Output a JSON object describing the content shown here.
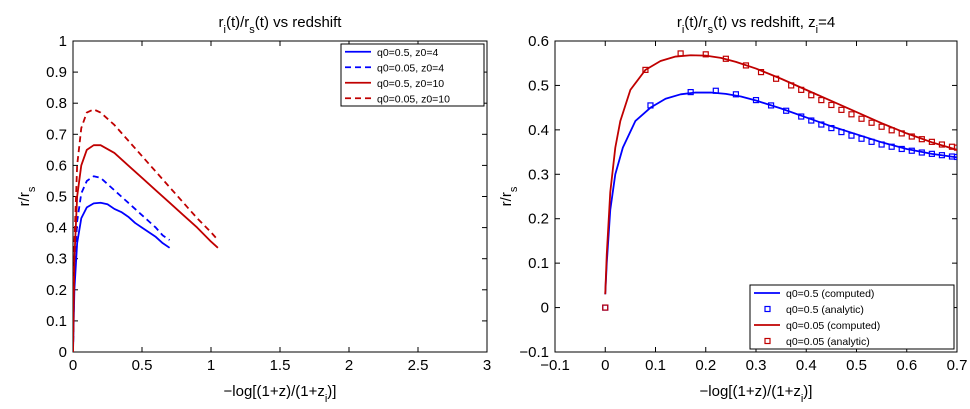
{
  "chart_data": [
    {
      "type": "line",
      "title_base": "r",
      "title_sub1": "i",
      "title_mid": "(t)/r",
      "title_sub2": "s",
      "title_tail": "(t) vs redshift",
      "xlabel_base": "−log[(1+z)/(1+z",
      "xlabel_sub": "i",
      "xlabel_tail": ")]",
      "ylabel_base": "r/r",
      "ylabel_sub": "s",
      "xlim": [
        0,
        3
      ],
      "ylim": [
        0,
        1
      ],
      "xticks": [
        0,
        0.5,
        1,
        1.5,
        2,
        2.5,
        3
      ],
      "xtick_labels": [
        "0",
        "0.5",
        "1",
        "1.5",
        "2",
        "2.5",
        "3"
      ],
      "yticks": [
        0,
        0.1,
        0.2,
        0.3,
        0.4,
        0.5,
        0.6,
        0.7,
        0.8,
        0.9,
        1
      ],
      "ytick_labels": [
        "0",
        "0.1",
        "0.2",
        "0.3",
        "0.4",
        "0.5",
        "0.6",
        "0.7",
        "0.8",
        "0.9",
        "1"
      ],
      "legend_position": "top-right",
      "series": [
        {
          "name": "q0=0.5, z0=4",
          "color": "#0000ff",
          "style": "solid",
          "x": [
            0,
            0.01,
            0.03,
            0.06,
            0.1,
            0.15,
            0.2,
            0.25,
            0.3,
            0.35,
            0.4,
            0.45,
            0.5,
            0.55,
            0.6,
            0.65,
            0.7
          ],
          "y": [
            0,
            0.2,
            0.35,
            0.43,
            0.465,
            0.478,
            0.48,
            0.475,
            0.46,
            0.45,
            0.435,
            0.415,
            0.4,
            0.385,
            0.37,
            0.35,
            0.335
          ]
        },
        {
          "name": "q0=0.05, z0=4",
          "color": "#0000ff",
          "style": "dashed",
          "x": [
            0,
            0.01,
            0.03,
            0.06,
            0.1,
            0.15,
            0.2,
            0.25,
            0.3,
            0.35,
            0.4,
            0.45,
            0.5,
            0.55,
            0.6,
            0.65,
            0.7
          ],
          "y": [
            0,
            0.25,
            0.42,
            0.51,
            0.55,
            0.565,
            0.56,
            0.54,
            0.52,
            0.5,
            0.48,
            0.46,
            0.44,
            0.42,
            0.4,
            0.375,
            0.36
          ]
        },
        {
          "name": "q0=0.5, z0=10",
          "color": "#c00000",
          "style": "solid",
          "x": [
            0,
            0.01,
            0.03,
            0.06,
            0.1,
            0.15,
            0.2,
            0.3,
            0.4,
            0.5,
            0.6,
            0.7,
            0.8,
            0.9,
            1.0,
            1.05
          ],
          "y": [
            0,
            0.3,
            0.5,
            0.6,
            0.65,
            0.665,
            0.665,
            0.64,
            0.6,
            0.56,
            0.52,
            0.48,
            0.44,
            0.4,
            0.355,
            0.335
          ]
        },
        {
          "name": "q0=0.05, z0=10",
          "color": "#c00000",
          "style": "dashed",
          "x": [
            0,
            0.01,
            0.03,
            0.06,
            0.1,
            0.15,
            0.2,
            0.3,
            0.4,
            0.5,
            0.6,
            0.7,
            0.8,
            0.9,
            1.0,
            1.05
          ],
          "y": [
            0,
            0.35,
            0.6,
            0.72,
            0.77,
            0.78,
            0.77,
            0.73,
            0.68,
            0.63,
            0.58,
            0.53,
            0.48,
            0.43,
            0.385,
            0.36
          ]
        }
      ]
    },
    {
      "type": "line",
      "title_base": "r",
      "title_sub1": "i",
      "title_mid": "(t)/r",
      "title_sub2": "s",
      "title_tail": "(t) vs redshift, z",
      "title_sub3": "i",
      "title_tail2": "=4",
      "xlabel_base": "−log[(1+z)/(1+z",
      "xlabel_sub": "i",
      "xlabel_tail": ")]",
      "ylabel_base": "r/r",
      "ylabel_sub": "s",
      "xlim": [
        -0.1,
        0.7
      ],
      "ylim": [
        -0.1,
        0.6
      ],
      "xticks": [
        -0.1,
        0,
        0.1,
        0.2,
        0.3,
        0.4,
        0.5,
        0.6,
        0.7
      ],
      "xtick_labels": [
        "−0.1",
        "0",
        "0.1",
        "0.2",
        "0.3",
        "0.4",
        "0.5",
        "0.6",
        "0.7"
      ],
      "yticks": [
        -0.1,
        0,
        0.1,
        0.2,
        0.3,
        0.4,
        0.5,
        0.6
      ],
      "ytick_labels": [
        "−0.1",
        "0",
        "0.1",
        "0.2",
        "0.3",
        "0.4",
        "0.5",
        "0.6"
      ],
      "legend_position": "bottom-right",
      "series": [
        {
          "name": "q0=0.5 (computed)",
          "color": "#0000ff",
          "style": "solid",
          "x": [
            0,
            0.003,
            0.01,
            0.02,
            0.035,
            0.06,
            0.09,
            0.12,
            0.15,
            0.18,
            0.21,
            0.24,
            0.27,
            0.3,
            0.35,
            0.4,
            0.45,
            0.5,
            0.55,
            0.6,
            0.65,
            0.7
          ],
          "y": [
            0.03,
            0.1,
            0.22,
            0.3,
            0.36,
            0.42,
            0.45,
            0.47,
            0.48,
            0.484,
            0.484,
            0.481,
            0.475,
            0.466,
            0.448,
            0.428,
            0.408,
            0.39,
            0.372,
            0.357,
            0.346,
            0.338
          ]
        },
        {
          "name": "q0=0.5 (analytic)",
          "color": "#0000ff",
          "style": "markers",
          "x": [
            0,
            0.09,
            0.17,
            0.22,
            0.26,
            0.3,
            0.33,
            0.36,
            0.39,
            0.41,
            0.43,
            0.45,
            0.47,
            0.49,
            0.51,
            0.53,
            0.55,
            0.57,
            0.59,
            0.61,
            0.63,
            0.65,
            0.67,
            0.69,
            0.7
          ],
          "y": [
            0,
            0.455,
            0.485,
            0.488,
            0.48,
            0.467,
            0.455,
            0.443,
            0.43,
            0.421,
            0.412,
            0.404,
            0.395,
            0.387,
            0.38,
            0.373,
            0.367,
            0.362,
            0.357,
            0.353,
            0.349,
            0.346,
            0.343,
            0.34,
            0.339
          ]
        },
        {
          "name": "q0=0.05 (computed)",
          "color": "#c00000",
          "style": "solid",
          "x": [
            0,
            0.003,
            0.01,
            0.02,
            0.03,
            0.05,
            0.08,
            0.11,
            0.14,
            0.17,
            0.2,
            0.23,
            0.26,
            0.3,
            0.35,
            0.4,
            0.45,
            0.5,
            0.55,
            0.6,
            0.65,
            0.7
          ],
          "y": [
            0.03,
            0.12,
            0.26,
            0.36,
            0.42,
            0.49,
            0.535,
            0.555,
            0.565,
            0.568,
            0.567,
            0.562,
            0.553,
            0.538,
            0.515,
            0.49,
            0.465,
            0.44,
            0.415,
            0.392,
            0.372,
            0.355
          ]
        },
        {
          "name": "q0=0.05 (analytic)",
          "color": "#c00000",
          "style": "markers",
          "x": [
            0,
            0.08,
            0.15,
            0.2,
            0.24,
            0.28,
            0.31,
            0.34,
            0.37,
            0.39,
            0.41,
            0.43,
            0.45,
            0.47,
            0.49,
            0.51,
            0.53,
            0.55,
            0.57,
            0.59,
            0.61,
            0.63,
            0.65,
            0.67,
            0.69,
            0.7
          ],
          "y": [
            0,
            0.535,
            0.572,
            0.57,
            0.56,
            0.545,
            0.53,
            0.515,
            0.5,
            0.49,
            0.478,
            0.467,
            0.456,
            0.445,
            0.435,
            0.425,
            0.416,
            0.407,
            0.399,
            0.392,
            0.385,
            0.379,
            0.373,
            0.367,
            0.362,
            0.36
          ]
        }
      ]
    }
  ]
}
